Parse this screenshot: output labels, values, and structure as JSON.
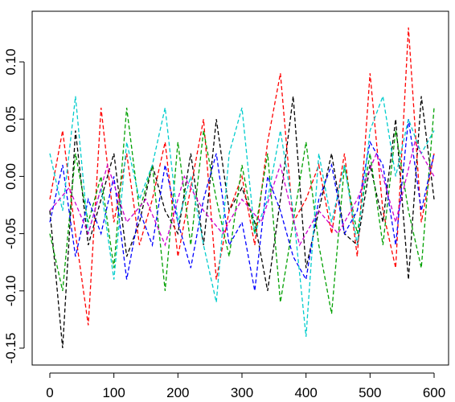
{
  "chart_data": {
    "type": "line",
    "title": "",
    "xlabel": "",
    "ylabel": "",
    "xlim": [
      0,
      600
    ],
    "ylim": [
      -0.15,
      0.13
    ],
    "x_ticks": [
      0,
      100,
      200,
      300,
      400,
      500,
      600
    ],
    "x_tick_labels": [
      "0",
      "100",
      "200",
      "300",
      "400",
      "500",
      "600"
    ],
    "y_ticks": [
      -0.15,
      -0.1,
      -0.05,
      0.0,
      0.05,
      0.1
    ],
    "y_tick_labels": [
      "-0.15",
      "-0.10",
      "-0.05",
      "0.00",
      "0.05",
      "0.10"
    ],
    "grid": false,
    "legend": "none",
    "line_style": "dashed",
    "series": [
      {
        "color": "#000000",
        "x": [
          0,
          20,
          40,
          60,
          80,
          100,
          120,
          140,
          160,
          180,
          200,
          220,
          240,
          260,
          280,
          300,
          320,
          340,
          360,
          380,
          400,
          420,
          440,
          460,
          480,
          500,
          520,
          540,
          560,
          580,
          600
        ],
        "values": [
          -0.03,
          -0.15,
          0.04,
          -0.06,
          -0.02,
          0.02,
          -0.07,
          -0.04,
          0.01,
          -0.03,
          -0.05,
          0.02,
          -0.06,
          0.05,
          -0.03,
          -0.01,
          -0.04,
          -0.1,
          -0.02,
          0.07,
          -0.08,
          -0.03,
          0.02,
          -0.05,
          -0.06,
          0.01,
          -0.04,
          0.05,
          -0.09,
          0.07,
          -0.02
        ]
      },
      {
        "color": "#ff0000",
        "x": [
          0,
          20,
          40,
          60,
          80,
          100,
          120,
          140,
          160,
          180,
          200,
          220,
          240,
          260,
          280,
          300,
          320,
          340,
          360,
          380,
          400,
          420,
          440,
          460,
          480,
          500,
          520,
          540,
          560,
          580,
          600
        ],
        "values": [
          -0.02,
          0.04,
          -0.05,
          -0.13,
          0.06,
          -0.04,
          0.02,
          -0.06,
          -0.02,
          0.03,
          -0.07,
          -0.01,
          0.05,
          -0.09,
          -0.03,
          0.0,
          -0.06,
          0.03,
          0.09,
          -0.04,
          -0.02,
          0.01,
          -0.05,
          0.02,
          -0.07,
          0.09,
          -0.03,
          -0.08,
          0.13,
          -0.04,
          0.02
        ]
      },
      {
        "color": "#00a000",
        "x": [
          0,
          20,
          40,
          60,
          80,
          100,
          120,
          140,
          160,
          180,
          200,
          220,
          240,
          260,
          280,
          300,
          320,
          340,
          360,
          380,
          400,
          420,
          440,
          460,
          480,
          500,
          520,
          540,
          560,
          580,
          600
        ],
        "values": [
          -0.05,
          -0.1,
          0.02,
          -0.04,
          0.0,
          -0.08,
          0.06,
          -0.03,
          0.01,
          -0.1,
          0.03,
          -0.06,
          0.04,
          -0.02,
          -0.07,
          0.01,
          -0.05,
          0.02,
          -0.11,
          -0.04,
          0.03,
          -0.06,
          -0.12,
          0.01,
          -0.05,
          0.02,
          -0.06,
          0.04,
          -0.03,
          -0.08,
          0.06
        ]
      },
      {
        "color": "#0000ff",
        "x": [
          0,
          20,
          40,
          60,
          80,
          100,
          120,
          140,
          160,
          180,
          200,
          220,
          240,
          260,
          280,
          300,
          320,
          340,
          360,
          380,
          400,
          420,
          440,
          460,
          480,
          500,
          520,
          540,
          560,
          580,
          600
        ],
        "values": [
          -0.04,
          0.01,
          -0.07,
          -0.02,
          -0.05,
          0.0,
          -0.09,
          -0.03,
          -0.06,
          0.01,
          -0.04,
          -0.08,
          -0.02,
          0.02,
          -0.06,
          -0.04,
          -0.1,
          0.0,
          -0.03,
          -0.07,
          -0.09,
          -0.02,
          0.01,
          -0.05,
          -0.03,
          0.03,
          0.01,
          -0.06,
          0.05,
          -0.03,
          0.02
        ]
      },
      {
        "color": "#00cccc",
        "x": [
          0,
          20,
          40,
          60,
          80,
          100,
          120,
          140,
          160,
          180,
          200,
          220,
          240,
          260,
          280,
          300,
          320,
          340,
          360,
          380,
          400,
          420,
          440,
          460,
          480,
          500,
          520,
          540,
          560,
          580,
          600
        ],
        "values": [
          0.02,
          -0.03,
          0.07,
          -0.05,
          -0.01,
          -0.09,
          0.03,
          -0.02,
          0.01,
          0.06,
          -0.04,
          0.0,
          -0.06,
          -0.11,
          0.02,
          0.06,
          -0.05,
          -0.02,
          0.04,
          -0.03,
          -0.14,
          0.02,
          -0.04,
          0.01,
          -0.06,
          0.04,
          0.07,
          0.0,
          0.05,
          0.02,
          0.04
        ]
      },
      {
        "color": "#cc00cc",
        "x": [
          0,
          30,
          60,
          90,
          120,
          150,
          180,
          210,
          240,
          270,
          300,
          330,
          360,
          390,
          420,
          450,
          480,
          510,
          540,
          570,
          600
        ],
        "values": [
          -0.03,
          -0.01,
          -0.05,
          0.01,
          -0.04,
          -0.02,
          -0.06,
          0.0,
          -0.03,
          -0.05,
          -0.02,
          -0.04,
          0.01,
          -0.06,
          -0.03,
          -0.05,
          -0.02,
          0.02,
          -0.04,
          0.03,
          0.0
        ]
      }
    ]
  }
}
